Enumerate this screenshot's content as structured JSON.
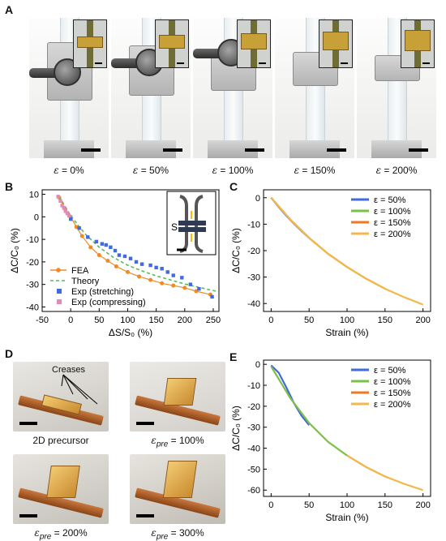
{
  "panels": {
    "a": "A",
    "b": "B",
    "c": "C",
    "d": "D",
    "e": "E"
  },
  "panel_a": {
    "captions": [
      {
        "symbol": "ε",
        "text": " = 0%"
      },
      {
        "symbol": "ε",
        "text": " = 50%"
      },
      {
        "symbol": "ε",
        "text": " = 100%"
      },
      {
        "symbol": "ε",
        "text": " = 150%"
      },
      {
        "symbol": "ε",
        "text": " = 200%"
      }
    ]
  },
  "panel_d": {
    "creases_label": "Creases",
    "captions": [
      {
        "symbol": "",
        "sub": "",
        "text": "2D precursor"
      },
      {
        "symbol": "ε",
        "sub": "pre",
        "text": " = 100%"
      },
      {
        "symbol": "ε",
        "sub": "pre",
        "text": " = 200%"
      },
      {
        "symbol": "ε",
        "sub": "pre",
        "text": " = 300%"
      }
    ]
  },
  "chart_data": [
    {
      "panel": "B",
      "type": "scatter",
      "xlabel": "ΔS/S₀ (%)",
      "ylabel": "ΔC/C₀ (%)",
      "xlim": [
        -50,
        260
      ],
      "ylim": [
        -42,
        12
      ],
      "xticks": [
        -50,
        0,
        50,
        100,
        150,
        200,
        250
      ],
      "yticks": [
        10,
        0,
        -10,
        -20,
        -30,
        -40
      ],
      "legend_position": "bottom-left",
      "inset_label": "S",
      "series": [
        {
          "name": "FEA",
          "style": "line-markers",
          "color": "#f08a24",
          "x": [
            -20,
            -10,
            0,
            10,
            20,
            35,
            50,
            65,
            80,
            100,
            120,
            140,
            160,
            180,
            200,
            220,
            245
          ],
          "y": [
            8.5,
            3.5,
            0,
            -4.5,
            -8.5,
            -13.5,
            -17,
            -19.5,
            -22,
            -24.5,
            -26.5,
            -28,
            -29.5,
            -30.5,
            -31.5,
            -33,
            -34.5
          ]
        },
        {
          "name": "Theory",
          "style": "dashed",
          "color": "#5cb85c",
          "x": [
            -20,
            0,
            25,
            50,
            75,
            100,
            125,
            150,
            175,
            200,
            225,
            255
          ],
          "y": [
            9,
            0.5,
            -7.5,
            -13.5,
            -18,
            -21.5,
            -24,
            -26.2,
            -28,
            -29.8,
            -31.3,
            -33
          ]
        },
        {
          "name": "Exp (stretching)",
          "style": "squares",
          "color": "#4169e1",
          "x": [
            0,
            15,
            30,
            45,
            55,
            62,
            70,
            78,
            85,
            95,
            105,
            115,
            125,
            140,
            150,
            160,
            170,
            180,
            195,
            210,
            225,
            248
          ],
          "y": [
            -1,
            -5,
            -9,
            -11,
            -12,
            -12.5,
            -13.5,
            -15,
            -17,
            -17.5,
            -18.5,
            -20,
            -21,
            -21.5,
            -22.5,
            -23,
            -24.5,
            -26,
            -27,
            -30,
            -32,
            -35.5
          ]
        },
        {
          "name": "Exp (compressing)",
          "style": "squares",
          "color": "#e48ab8",
          "x": [
            -22,
            -18,
            -15,
            -12,
            -9,
            -6,
            -3
          ],
          "y": [
            9,
            7,
            5,
            4,
            2.5,
            1.5,
            0.5
          ]
        }
      ]
    },
    {
      "panel": "C",
      "type": "line",
      "xlabel": "Strain (%)",
      "ylabel": "ΔC/C₀ (%)",
      "xlim": [
        -10,
        210
      ],
      "ylim": [
        -43,
        3
      ],
      "xticks": [
        0,
        50,
        100,
        150,
        200
      ],
      "yticks": [
        0,
        -10,
        -20,
        -30,
        -40
      ],
      "legend_position": "top-right",
      "series": [
        {
          "name": "ε = 50%",
          "color": "#4169e1",
          "x": [
            0,
            10,
            20,
            30,
            40,
            50
          ],
          "y": [
            0,
            -3.5,
            -6.8,
            -9.8,
            -12.6,
            -15.2
          ]
        },
        {
          "name": "ε = 100%",
          "color": "#7cc242",
          "x": [
            0,
            25,
            50,
            75,
            100
          ],
          "y": [
            0,
            -8.2,
            -15.2,
            -21.2,
            -26.2
          ]
        },
        {
          "name": "ε = 150%",
          "color": "#f07820",
          "x": [
            0,
            25,
            50,
            75,
            100,
            125,
            150
          ],
          "y": [
            0,
            -8.2,
            -15.2,
            -21.2,
            -26.2,
            -30.6,
            -34.4
          ]
        },
        {
          "name": "ε = 200%",
          "color": "#f2b84b",
          "x": [
            0,
            25,
            50,
            75,
            100,
            125,
            150,
            175,
            200
          ],
          "y": [
            0,
            -8.2,
            -15.2,
            -21.2,
            -26.2,
            -30.6,
            -34.4,
            -37.6,
            -40.4
          ]
        }
      ]
    },
    {
      "panel": "E",
      "type": "line",
      "xlabel": "Strain (%)",
      "ylabel": "ΔC/C₀ (%)",
      "xlim": [
        -10,
        210
      ],
      "ylim": [
        -63,
        2
      ],
      "xticks": [
        0,
        50,
        100,
        150,
        200
      ],
      "yticks": [
        0,
        -10,
        -20,
        -30,
        -40,
        -50,
        -60
      ],
      "legend_position": "top-right",
      "series": [
        {
          "name": "ε = 50%",
          "color": "#4169e1",
          "x": [
            0,
            10,
            20,
            30,
            40,
            50
          ],
          "y": [
            -0.5,
            -4,
            -11,
            -18.5,
            -24.5,
            -29
          ]
        },
        {
          "name": "ε = 100%",
          "color": "#7cc242",
          "x": [
            0,
            25,
            50,
            75,
            100
          ],
          "y": [
            -1,
            -16,
            -28,
            -37,
            -43.5
          ]
        },
        {
          "name": "ε = 150%",
          "color": "#f07820",
          "x": [
            100,
            125,
            150
          ],
          "y": [
            -43.5,
            -49,
            -53.5
          ]
        },
        {
          "name": "ε = 200%",
          "color": "#f2b84b",
          "x": [
            100,
            125,
            150,
            175,
            200
          ],
          "y": [
            -43.5,
            -49,
            -53.5,
            -57,
            -60
          ]
        }
      ]
    }
  ]
}
